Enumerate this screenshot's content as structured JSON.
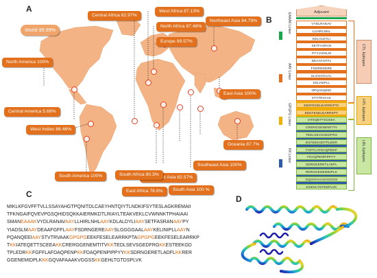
{
  "panels": {
    "a": "A",
    "b": "B",
    "c": "C",
    "d": "D"
  },
  "map_labels": {
    "world": "World 99.99%",
    "north_america": "North America 100%",
    "central_america": "Central America 5.68%",
    "west_indies": "West Indies 86.46%",
    "south_america": "South America 100%",
    "central_africa": "Central Africa 82.97%",
    "west_africa": "West Africa 87.13%",
    "north_africa": "North Africa 87.48%",
    "europe": "Europe 99.57%",
    "northeast_asia": "Northeast Asia 84.79%",
    "east_asia": "East Asia 100%",
    "oceania": "Oceania 87.7%",
    "southeast_asia": "Southeast Asia 100%",
    "south_asia": "South Asia 100 %",
    "southwest_asia": "Southwest Asia 82.57%",
    "east_africa": "East Africa 78.6%",
    "south_africa": "South Africa 80.3%"
  },
  "colors": {
    "pill": "#e2701c",
    "continent": "#f3b384",
    "eaaak": "#1aa64a",
    "aay": "#e2701c",
    "gpgpg": "#f0b000",
    "kk": "#2e5aa8"
  },
  "construct": {
    "adjuvant": "Adjuvant",
    "legend": {
      "eaaak": "EAAAK Linker",
      "aay": "AAY Linker",
      "gpgpg": "GPGPG Linker",
      "kk": "KK Linker"
    },
    "groups": {
      "ctl": "CTL Epitopes",
      "htl": "HTL Epitopes",
      "ltl": "LBL Epitopes"
    },
    "ctl": [
      "VYDLRANAV",
      "LLHIRLNHL",
      "KDLALDYLI",
      "SETFASRAN",
      "PYYIADSLM",
      "DEAAFGFFL",
      "FSDRNGERE",
      "SLGGGGAAL",
      "KELINIPLL",
      "NPQANQEEI",
      "STVTRVAAK"
    ],
    "htl": [
      "EEKFESELEARRKPTA",
      "EEKFESELEARRKPT"
    ],
    "ltl": [
      "IATEQETTSCEEA",
      "CRERGGENEMTITV",
      "TEDLSEVSGEDFRG",
      "ESTEEKGDTPLEDR",
      "FGFFLAFDAQPENP",
      "FDAQPENPIPPYY",
      "SDRNGERETLADFL",
      "RERGGENEMIDPLK",
      "GQVAFAAAKVGGSS",
      "KGEHLTGTDSPLVK"
    ]
  },
  "sequence_lines": [
    [
      [
        "n",
        "MIKLKFGVFFTVLLSSAYAHGTPQNITDLCAEYHNTQIYTLNDKIFSYTESLAGKREMAII"
      ]
    ],
    [
      [
        "n",
        "TFKNGAIFQVEVPGSQHIDSQKKAIERMKDTLRIAYLTEAKVEKLCVWNNKTPHAIAAI"
      ]
    ],
    [
      [
        "n",
        "SMAN"
      ],
      [
        "o",
        "EAAAK"
      ],
      [
        "n",
        "VYDLRANAV"
      ],
      [
        "o",
        "AAY"
      ],
      [
        "n",
        "LLHIRLNHL"
      ],
      [
        "o",
        "AAY"
      ],
      [
        "n",
        "KDLALDYLI"
      ],
      [
        "o",
        "AAY"
      ],
      [
        "n",
        "SETFASRAN"
      ],
      [
        "o",
        "AAY"
      ],
      [
        "n",
        "PY"
      ]
    ],
    [
      [
        "n",
        "YIADSLM"
      ],
      [
        "o",
        "AAY"
      ],
      [
        "n",
        "DEAAFGFFL"
      ],
      [
        "o",
        "AAY"
      ],
      [
        "n",
        "FSDRNGERE"
      ],
      [
        "o",
        "AAY"
      ],
      [
        "n",
        "SLGGGGAAL"
      ],
      [
        "o",
        "AAY"
      ],
      [
        "n",
        "KELINIPLL"
      ],
      [
        "o",
        "AAY"
      ],
      [
        "n",
        "N"
      ]
    ],
    [
      [
        "n",
        "PQANQEEI"
      ],
      [
        "o",
        "AAY"
      ],
      [
        "n",
        "STVTRVAAK"
      ],
      [
        "o",
        "GPGPG"
      ],
      [
        "n",
        "EEKFESELEARRKPTA"
      ],
      [
        "o",
        "GPGPG"
      ],
      [
        "n",
        "EEKFESELEARRKP"
      ]
    ],
    [
      [
        "n",
        "T"
      ],
      [
        "o",
        "KK"
      ],
      [
        "n",
        "IATEQETTSCEEA"
      ],
      [
        "o",
        "KK"
      ],
      [
        "n",
        "CRERGGENEMTITV"
      ],
      [
        "o",
        "KK"
      ],
      [
        "n",
        "TEDLSEVSGEDFRG"
      ],
      [
        "o",
        "KK"
      ],
      [
        "n",
        "ESTEEKGD"
      ]
    ],
    [
      [
        "n",
        "TPLEDR"
      ],
      [
        "o",
        "KK"
      ],
      [
        "n",
        "FGFFLAFDAQPENP"
      ],
      [
        "o",
        "KK"
      ],
      [
        "n",
        "FDAQPENPIPPYY"
      ],
      [
        "o",
        "KK"
      ],
      [
        "n",
        "SDRNGERETLADFL"
      ],
      [
        "o",
        "KK"
      ],
      [
        "n",
        "RER"
      ]
    ],
    [
      [
        "n",
        "GGENEMIDPLK"
      ],
      [
        "o",
        "KK"
      ],
      [
        "n",
        "GQVAFAAAKVGGSS"
      ],
      [
        "o",
        "KK"
      ],
      [
        "n",
        "GEHLTGTDSPLVK"
      ]
    ]
  ]
}
